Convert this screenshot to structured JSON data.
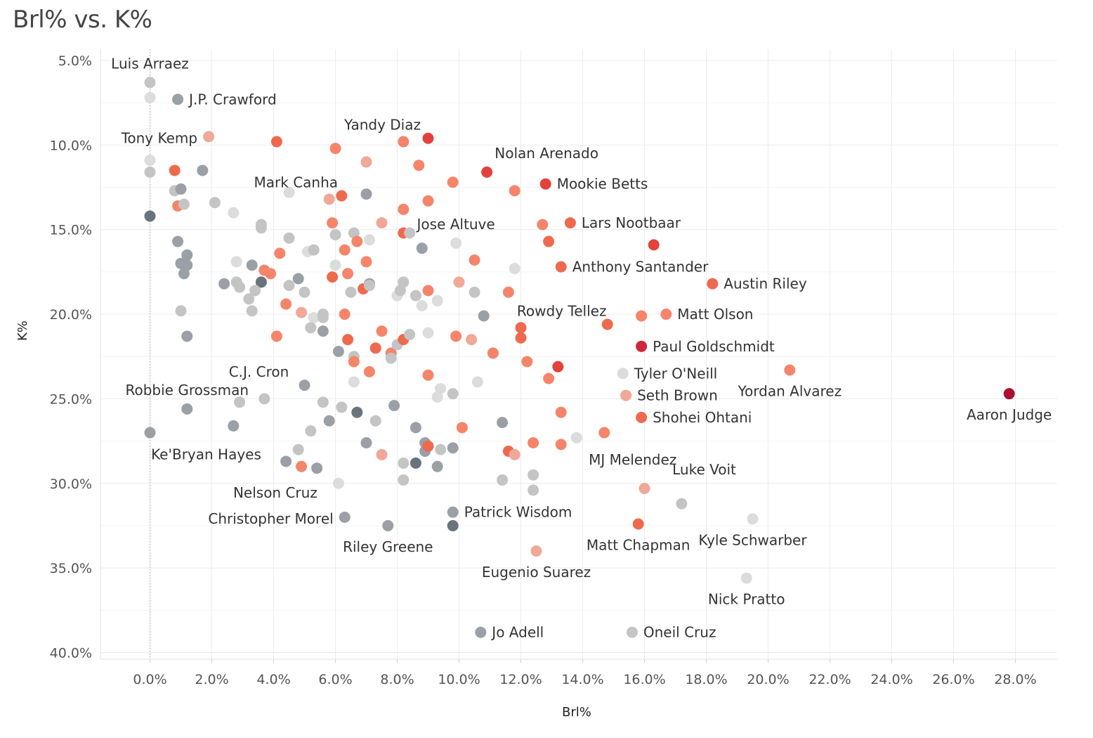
{
  "chart_data": {
    "type": "scatter",
    "title": "Brl% vs. K%",
    "xlabel": "Brl%",
    "ylabel": "K%",
    "xlim": [
      -1.6,
      29.4
    ],
    "ylim": [
      3.5,
      41.0
    ],
    "y_reversed": true,
    "grid": true,
    "legend": "none",
    "x_ticks": [
      0,
      2,
      4,
      6,
      8,
      10,
      12,
      14,
      16,
      18,
      20,
      22,
      24,
      26,
      28
    ],
    "x_tick_labels": [
      "0.0%",
      "2.0%",
      "4.0%",
      "6.0%",
      "8.0%",
      "10.0%",
      "12.0%",
      "14.0%",
      "16.0%",
      "18.0%",
      "20.0%",
      "22.0%",
      "24.0%",
      "26.0%",
      "28.0%"
    ],
    "y_ticks": [
      5,
      10,
      15,
      20,
      25,
      30,
      35,
      40
    ],
    "y_tick_labels": [
      "5.0%",
      "10.0%",
      "15.0%",
      "20.0%",
      "25.0%",
      "30.0%",
      "35.0%",
      "40.0%"
    ],
    "colors": {
      "dark_gray": "#68737d",
      "gray": "#9aa0a6",
      "light_gray": "#c4c4c4",
      "pale_gray": "#dcdcdc",
      "pink": "#f0a898",
      "salmon": "#f5856a",
      "orange_red": "#ee6a4e",
      "red": "#e3423c",
      "crimson": "#d0263a",
      "dark_crimson": "#aa1033"
    },
    "labeled_points": [
      {
        "name": "Luis Arraez",
        "x": 0.0,
        "y": 6.3,
        "c": "light_gray",
        "label_pos": "above"
      },
      {
        "name": "J.P. Crawford",
        "x": 0.9,
        "y": 7.3,
        "c": "gray",
        "label_pos": "right"
      },
      {
        "name": "Tony Kemp",
        "x": 1.9,
        "y": 9.5,
        "c": "pink",
        "label_pos": "left"
      },
      {
        "name": "Yandy Diaz",
        "x": 9.0,
        "y": 9.6,
        "c": "red",
        "label_pos": "above-left"
      },
      {
        "name": "Nolan Arenado",
        "x": 10.9,
        "y": 11.6,
        "c": "red",
        "label_pos": "above-right"
      },
      {
        "name": "Mookie Betts",
        "x": 12.8,
        "y": 12.3,
        "c": "red",
        "label_pos": "right"
      },
      {
        "name": "Mark Canha",
        "x": 6.2,
        "y": 13.0,
        "c": "orange_red",
        "label_pos": "above-left"
      },
      {
        "name": "Lars Nootbaar",
        "x": 13.6,
        "y": 14.6,
        "c": "orange_red",
        "label_pos": "right"
      },
      {
        "name": "Jose Altuve",
        "x": 9.9,
        "y": 15.8,
        "c": "pale_gray",
        "label_pos": "above"
      },
      {
        "name": "Anthony Santander",
        "x": 13.3,
        "y": 17.2,
        "c": "orange_red",
        "label_pos": "right"
      },
      {
        "name": "Austin Riley",
        "x": 18.2,
        "y": 18.2,
        "c": "orange_red",
        "label_pos": "right"
      },
      {
        "name": "Rowdy Tellez",
        "x": 14.8,
        "y": 20.6,
        "c": "orange_red",
        "label_pos": "above-left"
      },
      {
        "name": "Matt Olson",
        "x": 16.7,
        "y": 20.0,
        "c": "salmon",
        "label_pos": "right"
      },
      {
        "name": "Paul Goldschmidt",
        "x": 15.9,
        "y": 21.9,
        "c": "crimson",
        "label_pos": "right"
      },
      {
        "name": "C.J. Cron",
        "x": 5.0,
        "y": 24.2,
        "c": "gray",
        "label_pos": "above-left"
      },
      {
        "name": "Tyler O'Neill",
        "x": 15.3,
        "y": 23.5,
        "c": "pale_gray",
        "label_pos": "right"
      },
      {
        "name": "Robbie Grossman",
        "x": 1.2,
        "y": 25.6,
        "c": "gray",
        "label_pos": "above"
      },
      {
        "name": "Yordan Alvarez",
        "x": 20.7,
        "y": 23.3,
        "c": "salmon",
        "label_pos": "below"
      },
      {
        "name": "Seth Brown",
        "x": 15.4,
        "y": 24.8,
        "c": "pink",
        "label_pos": "right"
      },
      {
        "name": "Aaron Judge",
        "x": 27.8,
        "y": 24.7,
        "c": "dark_crimson",
        "label_pos": "below"
      },
      {
        "name": "Shohei Ohtani",
        "x": 15.9,
        "y": 26.1,
        "c": "orange_red",
        "label_pos": "right"
      },
      {
        "name": "Ke'Bryan Hayes",
        "x": 0.0,
        "y": 27.0,
        "c": "gray",
        "label_pos": "below-right"
      },
      {
        "name": "MJ Melendez",
        "x": 13.8,
        "y": 27.3,
        "c": "pale_gray",
        "label_pos": "below-right"
      },
      {
        "name": "Luke Voit",
        "x": 16.0,
        "y": 30.3,
        "c": "pink",
        "label_pos": "above-right"
      },
      {
        "name": "Nelson Cruz",
        "x": 6.1,
        "y": 30.0,
        "c": "pale_gray",
        "label_pos": "below-left"
      },
      {
        "name": "Patrick Wisdom",
        "x": 9.8,
        "y": 31.7,
        "c": "gray",
        "label_pos": "right"
      },
      {
        "name": "Christopher Morel",
        "x": 6.3,
        "y": 32.0,
        "c": "gray",
        "label_pos": "left"
      },
      {
        "name": "Kyle Schwarber",
        "x": 19.5,
        "y": 32.1,
        "c": "pale_gray",
        "label_pos": "below"
      },
      {
        "name": "Matt Chapman",
        "x": 15.8,
        "y": 32.4,
        "c": "orange_red",
        "label_pos": "below"
      },
      {
        "name": "Riley Greene",
        "x": 7.7,
        "y": 32.5,
        "c": "gray",
        "label_pos": "below"
      },
      {
        "name": "Eugenio Suarez",
        "x": 12.5,
        "y": 34.0,
        "c": "pink",
        "label_pos": "below"
      },
      {
        "name": "Nick Pratto",
        "x": 19.3,
        "y": 35.6,
        "c": "pale_gray",
        "label_pos": "below"
      },
      {
        "name": "Jo Adell",
        "x": 10.7,
        "y": 38.8,
        "c": "gray",
        "label_pos": "right"
      },
      {
        "name": "Oneil Cruz",
        "x": 15.6,
        "y": 38.8,
        "c": "light_gray",
        "label_pos": "right"
      }
    ],
    "other_points": [
      [
        0.0,
        7.2,
        "pale_gray"
      ],
      [
        0.0,
        10.9,
        "pale_gray"
      ],
      [
        0.0,
        11.6,
        "light_gray"
      ],
      [
        0.0,
        14.2,
        "dark_gray"
      ],
      [
        0.8,
        11.5,
        "orange_red"
      ],
      [
        0.8,
        12.7,
        "light_gray"
      ],
      [
        1.0,
        12.6,
        "gray"
      ],
      [
        0.9,
        13.6,
        "salmon"
      ],
      [
        1.1,
        13.5,
        "light_gray"
      ],
      [
        1.7,
        11.5,
        "gray"
      ],
      [
        0.9,
        15.7,
        "gray"
      ],
      [
        1.2,
        16.5,
        "gray"
      ],
      [
        1.0,
        17.0,
        "gray"
      ],
      [
        1.2,
        17.1,
        "gray"
      ],
      [
        1.1,
        17.6,
        "gray"
      ],
      [
        1.0,
        19.8,
        "light_gray"
      ],
      [
        1.2,
        21.3,
        "gray"
      ],
      [
        2.1,
        13.4,
        "light_gray"
      ],
      [
        2.7,
        14.0,
        "pale_gray"
      ],
      [
        2.4,
        18.2,
        "gray"
      ],
      [
        2.8,
        16.9,
        "pale_gray"
      ],
      [
        2.8,
        18.1,
        "light_gray"
      ],
      [
        2.9,
        18.4,
        "light_gray"
      ],
      [
        3.3,
        17.1,
        "gray"
      ],
      [
        3.6,
        18.1,
        "dark_gray"
      ],
      [
        3.6,
        14.7,
        "light_gray"
      ],
      [
        3.6,
        14.9,
        "light_gray"
      ],
      [
        3.4,
        18.6,
        "light_gray"
      ],
      [
        3.2,
        19.1,
        "light_gray"
      ],
      [
        3.3,
        19.8,
        "light_gray"
      ],
      [
        3.7,
        17.4,
        "salmon"
      ],
      [
        3.9,
        17.6,
        "salmon"
      ],
      [
        4.1,
        9.8,
        "orange_red"
      ],
      [
        4.2,
        16.4,
        "salmon"
      ],
      [
        4.4,
        19.4,
        "salmon"
      ],
      [
        4.1,
        21.3,
        "salmon"
      ],
      [
        4.5,
        12.8,
        "pale_gray"
      ],
      [
        4.5,
        15.5,
        "light_gray"
      ],
      [
        4.5,
        18.3,
        "light_gray"
      ],
      [
        4.8,
        17.9,
        "gray"
      ],
      [
        5.0,
        18.7,
        "light_gray"
      ],
      [
        4.9,
        19.9,
        "pink"
      ],
      [
        5.1,
        16.3,
        "pale_gray"
      ],
      [
        5.3,
        16.2,
        "light_gray"
      ],
      [
        5.3,
        20.2,
        "pale_gray"
      ],
      [
        5.2,
        20.8,
        "light_gray"
      ],
      [
        5.6,
        20.0,
        "light_gray"
      ],
      [
        5.6,
        20.2,
        "light_gray"
      ],
      [
        5.6,
        21.0,
        "gray"
      ],
      [
        5.8,
        13.2,
        "pink"
      ],
      [
        5.9,
        14.6,
        "salmon"
      ],
      [
        5.9,
        17.8,
        "orange_red"
      ],
      [
        6.0,
        10.2,
        "salmon"
      ],
      [
        6.0,
        15.3,
        "light_gray"
      ],
      [
        6.0,
        17.1,
        "pale_gray"
      ],
      [
        6.1,
        22.2,
        "gray"
      ],
      [
        6.3,
        16.2,
        "salmon"
      ],
      [
        6.4,
        17.6,
        "salmon"
      ],
      [
        6.5,
        18.7,
        "light_gray"
      ],
      [
        6.3,
        20.0,
        "salmon"
      ],
      [
        6.4,
        21.5,
        "orange_red"
      ],
      [
        6.6,
        15.2,
        "light_gray"
      ],
      [
        6.7,
        15.7,
        "salmon"
      ],
      [
        6.6,
        22.5,
        "light_gray"
      ],
      [
        6.6,
        22.8,
        "salmon"
      ],
      [
        6.6,
        24.0,
        "pale_gray"
      ],
      [
        6.9,
        18.5,
        "orange_red"
      ],
      [
        7.0,
        11.0,
        "pink"
      ],
      [
        7.0,
        12.9,
        "gray"
      ],
      [
        7.1,
        15.6,
        "pale_gray"
      ],
      [
        7.0,
        16.9,
        "salmon"
      ],
      [
        7.1,
        18.2,
        "gray"
      ],
      [
        7.1,
        18.3,
        "light_gray"
      ],
      [
        7.1,
        23.4,
        "salmon"
      ],
      [
        7.3,
        22.0,
        "orange_red"
      ],
      [
        7.5,
        14.6,
        "pink"
      ],
      [
        7.5,
        21.0,
        "salmon"
      ],
      [
        7.8,
        22.3,
        "salmon"
      ],
      [
        7.8,
        22.6,
        "light_gray"
      ],
      [
        8.0,
        18.9,
        "pale_gray"
      ],
      [
        8.0,
        21.8,
        "light_gray"
      ],
      [
        8.1,
        18.6,
        "light_gray"
      ],
      [
        8.2,
        9.8,
        "salmon"
      ],
      [
        8.2,
        13.8,
        "salmon"
      ],
      [
        8.2,
        15.2,
        "orange_red"
      ],
      [
        8.2,
        18.1,
        "light_gray"
      ],
      [
        8.2,
        21.5,
        "orange_red"
      ],
      [
        8.4,
        15.2,
        "light_gray"
      ],
      [
        8.4,
        21.2,
        "light_gray"
      ],
      [
        8.6,
        18.9,
        "light_gray"
      ],
      [
        8.7,
        11.2,
        "salmon"
      ],
      [
        8.8,
        16.1,
        "gray"
      ],
      [
        8.8,
        19.5,
        "pale_gray"
      ],
      [
        9.0,
        13.3,
        "salmon"
      ],
      [
        9.0,
        18.6,
        "salmon"
      ],
      [
        9.0,
        21.1,
        "pale_gray"
      ],
      [
        9.0,
        23.6,
        "salmon"
      ],
      [
        9.3,
        19.2,
        "pale_gray"
      ],
      [
        9.4,
        24.4,
        "pale_gray"
      ],
      [
        9.3,
        24.9,
        "pale_gray"
      ],
      [
        9.8,
        12.2,
        "salmon"
      ],
      [
        9.9,
        21.3,
        "salmon"
      ],
      [
        10.0,
        18.1,
        "pink"
      ],
      [
        10.4,
        21.5,
        "pink"
      ],
      [
        10.5,
        16.8,
        "salmon"
      ],
      [
        10.5,
        18.7,
        "light_gray"
      ],
      [
        10.8,
        20.1,
        "gray"
      ],
      [
        10.6,
        24.0,
        "pale_gray"
      ],
      [
        9.8,
        24.7,
        "light_gray"
      ],
      [
        11.1,
        22.3,
        "salmon"
      ],
      [
        11.8,
        12.7,
        "salmon"
      ],
      [
        11.8,
        17.3,
        "pale_gray"
      ],
      [
        11.6,
        18.7,
        "salmon"
      ],
      [
        12.0,
        20.8,
        "orange_red"
      ],
      [
        12.0,
        21.4,
        "orange_red"
      ],
      [
        12.2,
        22.8,
        "salmon"
      ],
      [
        12.7,
        14.7,
        "salmon"
      ],
      [
        12.9,
        15.7,
        "orange_red"
      ],
      [
        12.9,
        23.8,
        "salmon"
      ],
      [
        13.2,
        23.1,
        "red"
      ],
      [
        16.3,
        15.9,
        "red"
      ],
      [
        15.9,
        20.1,
        "salmon"
      ],
      [
        14.7,
        27.0,
        "salmon"
      ],
      [
        13.3,
        25.8,
        "salmon"
      ],
      [
        13.3,
        27.7,
        "salmon"
      ],
      [
        12.4,
        27.6,
        "salmon"
      ],
      [
        11.6,
        28.1,
        "orange_red"
      ],
      [
        11.8,
        28.3,
        "pink"
      ],
      [
        11.4,
        26.4,
        "gray"
      ],
      [
        11.4,
        29.8,
        "light_gray"
      ],
      [
        12.4,
        29.5,
        "light_gray"
      ],
      [
        12.4,
        30.4,
        "light_gray"
      ],
      [
        17.2,
        31.2,
        "light_gray"
      ],
      [
        10.1,
        26.7,
        "salmon"
      ],
      [
        9.8,
        27.9,
        "gray"
      ],
      [
        9.4,
        28.0,
        "light_gray"
      ],
      [
        8.9,
        27.6,
        "gray"
      ],
      [
        8.9,
        28.1,
        "gray"
      ],
      [
        9.0,
        27.8,
        "orange_red"
      ],
      [
        8.6,
        26.7,
        "gray"
      ],
      [
        8.6,
        28.8,
        "dark_gray"
      ],
      [
        9.3,
        29.0,
        "gray"
      ],
      [
        8.2,
        28.8,
        "light_gray"
      ],
      [
        8.2,
        29.8,
        "light_gray"
      ],
      [
        7.5,
        28.3,
        "pink"
      ],
      [
        7.3,
        26.3,
        "light_gray"
      ],
      [
        6.7,
        25.8,
        "dark_gray"
      ],
      [
        6.2,
        25.5,
        "light_gray"
      ],
      [
        5.8,
        26.3,
        "gray"
      ],
      [
        5.2,
        26.9,
        "light_gray"
      ],
      [
        5.6,
        25.2,
        "light_gray"
      ],
      [
        7.0,
        27.6,
        "gray"
      ],
      [
        7.9,
        25.4,
        "gray"
      ],
      [
        4.8,
        28.0,
        "light_gray"
      ],
      [
        4.9,
        29.0,
        "salmon"
      ],
      [
        5.4,
        29.1,
        "gray"
      ],
      [
        4.4,
        28.7,
        "gray"
      ],
      [
        3.7,
        25.0,
        "light_gray"
      ],
      [
        2.9,
        25.2,
        "light_gray"
      ],
      [
        2.7,
        26.6,
        "gray"
      ],
      [
        9.8,
        32.5,
        "dark_gray"
      ]
    ]
  }
}
